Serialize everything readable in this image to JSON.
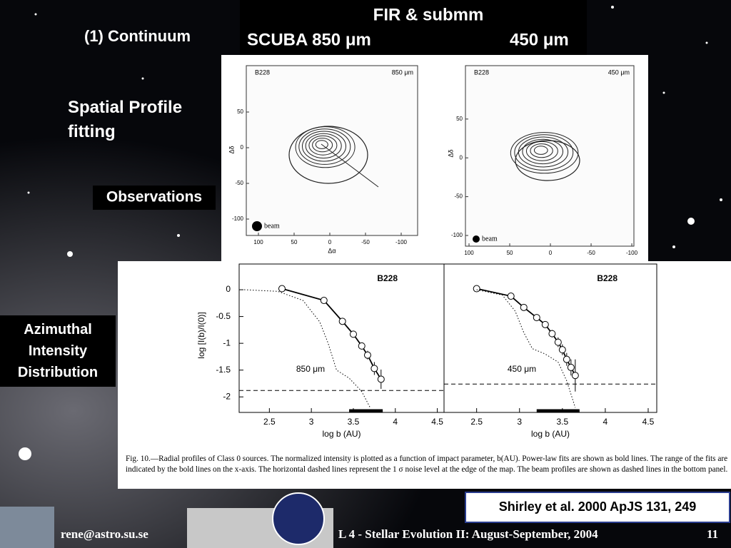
{
  "header": {
    "title": "FIR & submm",
    "left": "SCUBA 850 μm",
    "right": "450 μm"
  },
  "section": "(1)  Continuum",
  "labels": {
    "spatial": "Spatial Profile fitting",
    "observations": "Observations",
    "azimuthal": "Azimuthal Intensity Distribution"
  },
  "maps": [
    {
      "name": "B228",
      "band": "850 μm",
      "beam": "beam",
      "x_label": "Δα",
      "y_label": "Δδ",
      "xlim": [
        117,
        -123
      ],
      "ylim": [
        115,
        -123
      ],
      "xticks": [
        100,
        50,
        0,
        -50,
        -100
      ],
      "yticks": [
        50,
        0,
        -50,
        -100
      ]
    },
    {
      "name": "B228",
      "band": "450 μm",
      "beam": "beam",
      "y_label": "Δδ",
      "xlim": [
        104.4,
        -102.6
      ],
      "ylim": [
        118.8,
        -113.8
      ],
      "xticks": [
        100,
        50,
        0,
        -50,
        -100
      ],
      "yticks": [
        50,
        0,
        -50,
        -100
      ]
    }
  ],
  "chart_data": [
    {
      "type": "line",
      "title": "B228",
      "annotation": "850 μm",
      "x_label": "log b (AU)",
      "y_label": "log [I(b)/I(0)]",
      "xlim": [
        2.14,
        4.58
      ],
      "ylim": [
        -2.29,
        0.48
      ],
      "xticks": [
        2.5,
        3,
        3.5,
        4,
        4.5
      ],
      "yticks": [
        0,
        -0.5,
        -1,
        -1.5,
        -2
      ],
      "noise_level": -1.88,
      "fit_range": [
        3.45,
        3.85
      ],
      "series": [
        {
          "style": "data",
          "x": [
            2.65,
            3.15,
            3.37,
            3.5,
            3.6,
            3.67,
            3.75,
            3.83
          ],
          "values": [
            0.02,
            -0.2,
            -0.59,
            -0.83,
            -1.05,
            -1.22,
            -1.47,
            -1.67
          ],
          "errors": [
            0.02,
            0.02,
            0.03,
            0.04,
            0.06,
            0.08,
            0.12,
            0.18
          ]
        },
        {
          "style": "beam",
          "x": [
            2.2,
            2.6,
            2.9,
            3.1,
            3.2,
            3.3,
            3.45,
            3.6,
            3.7
          ],
          "values": [
            0,
            -0.03,
            -0.2,
            -0.6,
            -1.0,
            -1.5,
            -1.65,
            -1.9,
            -2.2
          ]
        }
      ]
    },
    {
      "type": "line",
      "title": "B228",
      "annotation": "450 μm",
      "x_label": "log b (AU)",
      "xlim": [
        2.12,
        4.6
      ],
      "ylim": [
        -2.29,
        0.48
      ],
      "xticks": [
        2.5,
        3,
        3.5,
        4,
        4.5
      ],
      "noise_level": -1.76,
      "fit_range": [
        3.2,
        3.7
      ],
      "series": [
        {
          "style": "data",
          "x": [
            2.5,
            2.9,
            3.05,
            3.2,
            3.3,
            3.38,
            3.45,
            3.5,
            3.55,
            3.6,
            3.65
          ],
          "values": [
            0.02,
            -0.12,
            -0.33,
            -0.52,
            -0.65,
            -0.82,
            -0.98,
            -1.12,
            -1.3,
            -1.45,
            -1.6
          ],
          "errors": [
            0.04,
            0.03,
            0.03,
            0.04,
            0.05,
            0.07,
            0.09,
            0.1,
            0.12,
            0.15,
            0.3
          ]
        },
        {
          "style": "beam",
          "x": [
            2.5,
            2.8,
            2.95,
            3.05,
            3.15,
            3.3,
            3.45,
            3.55,
            3.65
          ],
          "values": [
            0,
            -0.1,
            -0.4,
            -0.8,
            -1.1,
            -1.2,
            -1.35,
            -1.7,
            -2.2
          ]
        }
      ]
    }
  ],
  "caption": "Fig. 10.—Radial profiles of Class 0 sources. The normalized intensity is plotted as a function of impact parameter, b(AU). Power-law fits are shown as bold lines. The range of the fits are indicated by the bold lines on the x-axis. The horizontal dashed lines represent the 1 σ noise level at the edge of the map. The beam profiles are shown as dashed lines in the bottom panel.",
  "citation": "Shirley et al. 2000 ApJS 131, 249",
  "footer": {
    "email": "rene@astro.su.se",
    "course": "L 4 - Stellar Evolution II: August-September, 2004",
    "page": "11"
  }
}
